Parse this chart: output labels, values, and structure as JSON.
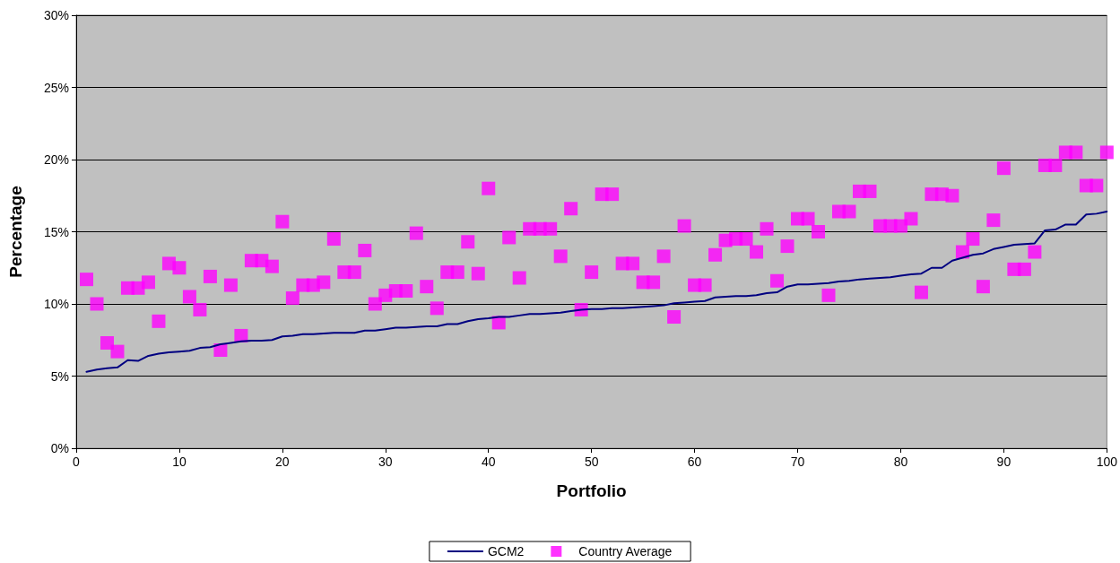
{
  "chart_data": {
    "type": "scatter",
    "xlabel": "Portfolio",
    "ylabel": "Percentage",
    "xlim": [
      0,
      100
    ],
    "xticks": [
      0,
      10,
      20,
      30,
      40,
      50,
      60,
      70,
      80,
      90,
      100
    ],
    "ylim": [
      0,
      30
    ],
    "yticks": [
      {
        "value": 0,
        "label": "0%"
      },
      {
        "value": 5,
        "label": "5%"
      },
      {
        "value": 10,
        "label": "10%"
      },
      {
        "value": 15,
        "label": "15%"
      },
      {
        "value": 20,
        "label": "20%"
      },
      {
        "value": 25,
        "label": "25%"
      },
      {
        "value": 30,
        "label": "30%"
      }
    ],
    "grid": "y",
    "legend": "bottom",
    "x": [
      1,
      2,
      3,
      4,
      5,
      6,
      7,
      8,
      9,
      10,
      11,
      12,
      13,
      14,
      15,
      16,
      17,
      18,
      19,
      20,
      21,
      22,
      23,
      24,
      25,
      26,
      27,
      28,
      29,
      30,
      31,
      32,
      33,
      34,
      35,
      36,
      37,
      38,
      39,
      40,
      41,
      42,
      43,
      44,
      45,
      46,
      47,
      48,
      49,
      50,
      51,
      52,
      53,
      54,
      55,
      56,
      57,
      58,
      59,
      60,
      61,
      62,
      63,
      64,
      65,
      66,
      67,
      68,
      69,
      70,
      71,
      72,
      73,
      74,
      75,
      76,
      77,
      78,
      79,
      80,
      81,
      82,
      83,
      84,
      85,
      86,
      87,
      88,
      89,
      90,
      91,
      92,
      93,
      94,
      95,
      96,
      97,
      98,
      99,
      100
    ],
    "series": [
      {
        "name": "GCM2",
        "type": "line",
        "marker": "none",
        "line_style": "solid",
        "color": "#000080",
        "values": [
          5.3,
          5.45,
          5.55,
          5.6,
          6.1,
          6.05,
          6.4,
          6.55,
          6.65,
          6.7,
          6.75,
          6.95,
          7.0,
          7.2,
          7.3,
          7.4,
          7.45,
          7.45,
          7.5,
          7.75,
          7.8,
          7.9,
          7.9,
          7.95,
          8.0,
          8.0,
          8.0,
          8.15,
          8.15,
          8.25,
          8.35,
          8.35,
          8.4,
          8.45,
          8.45,
          8.6,
          8.6,
          8.8,
          8.95,
          9.0,
          9.1,
          9.1,
          9.2,
          9.3,
          9.3,
          9.35,
          9.4,
          9.5,
          9.6,
          9.65,
          9.65,
          9.7,
          9.7,
          9.75,
          9.8,
          9.85,
          9.9,
          10.05,
          10.1,
          10.15,
          10.2,
          10.45,
          10.5,
          10.55,
          10.55,
          10.6,
          10.75,
          10.8,
          11.2,
          11.35,
          11.35,
          11.4,
          11.45,
          11.55,
          11.6,
          11.7,
          11.75,
          11.8,
          11.85,
          11.95,
          12.05,
          12.1,
          12.5,
          12.5,
          13.0,
          13.2,
          13.4,
          13.5,
          13.8,
          13.95,
          14.1,
          14.15,
          14.2,
          15.1,
          15.15,
          15.5,
          15.5,
          16.2,
          16.25,
          16.4
        ]
      },
      {
        "name": "Country Average",
        "type": "scatter",
        "marker": "square",
        "color": "#ff00ff",
        "values": [
          11.7,
          10.0,
          7.3,
          6.7,
          11.1,
          11.1,
          11.5,
          8.8,
          12.8,
          12.5,
          10.5,
          9.6,
          11.9,
          6.8,
          11.3,
          7.8,
          13.0,
          13.0,
          12.6,
          15.7,
          10.4,
          11.3,
          11.3,
          11.5,
          14.5,
          12.2,
          12.2,
          13.7,
          10.0,
          10.6,
          10.9,
          10.9,
          14.9,
          11.2,
          9.7,
          12.2,
          12.2,
          14.3,
          12.1,
          18.0,
          8.7,
          14.6,
          11.8,
          15.2,
          15.2,
          15.2,
          13.3,
          16.6,
          9.6,
          12.2,
          17.6,
          17.6,
          12.8,
          12.8,
          11.5,
          11.5,
          13.3,
          9.1,
          15.4,
          11.3,
          11.3,
          13.4,
          14.4,
          14.5,
          14.5,
          13.6,
          15.2,
          11.6,
          14.0,
          15.9,
          15.9,
          15.0,
          10.6,
          16.4,
          16.4,
          17.8,
          17.8,
          15.4,
          15.4,
          15.4,
          15.9,
          10.8,
          17.6,
          17.6,
          17.5,
          13.6,
          14.5,
          11.2,
          15.8,
          19.4,
          12.4,
          12.4,
          13.6,
          19.6,
          19.6,
          20.5,
          20.5,
          18.2,
          18.2,
          20.5
        ]
      }
    ]
  }
}
